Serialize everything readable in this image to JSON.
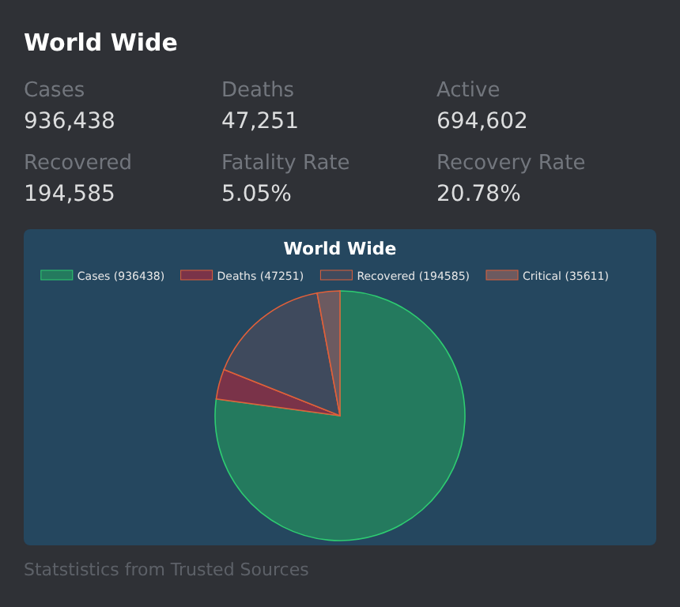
{
  "chart_data": [
    {
      "type": "other",
      "title": "World Wide",
      "categories": [
        "Cases",
        "Deaths",
        "Active",
        "Recovered",
        "Fatality Rate",
        "Recovery Rate"
      ],
      "value_labels": [
        "936,438",
        "47,251",
        "694,602",
        "194,585",
        "5.05%",
        "20.78%"
      ],
      "annotations": [
        "Statstistics from Trusted Sources"
      ]
    },
    {
      "type": "pie",
      "title": "World Wide",
      "categories": [
        "Cases (936438)",
        "Deaths (47251)",
        "Recovered (194585)",
        "Critical (35611)"
      ],
      "values": [
        936438,
        47251,
        194585,
        35611
      ],
      "colors": [
        "#247a5e",
        "#7a3349",
        "#3f4a5d",
        "#6c5a60"
      ],
      "legend": "top"
    }
  ]
}
